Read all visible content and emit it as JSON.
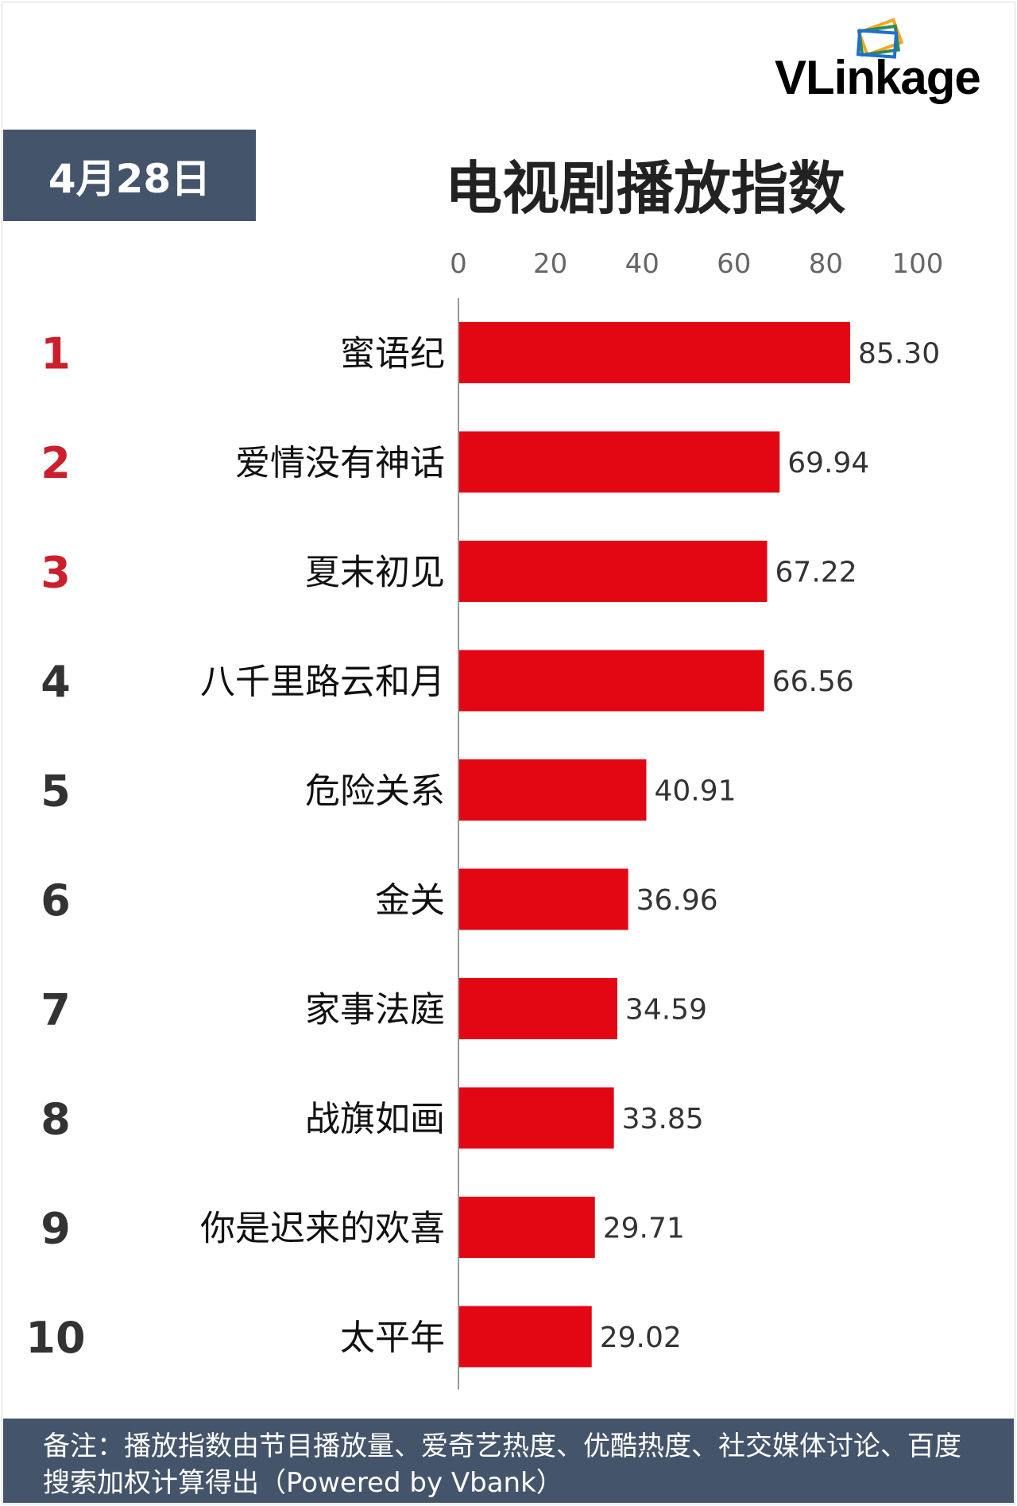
{
  "logo": {
    "text": "VLinkage"
  },
  "date_badge": "4月28日",
  "footer_note": "备注：播放指数由节目播放量、爱奇艺热度、优酷热度、社交媒体讨论、百度搜索加权计算得出（Powered by Vbank）",
  "colors": {
    "bar": "#e30613",
    "badge_bg": "#44546a",
    "rank_top": "#cc1e2c",
    "rank_other": "#333333"
  },
  "chart_data": {
    "type": "bar",
    "orientation": "horizontal",
    "title": "电视剧播放指数",
    "xlim": [
      0,
      100
    ],
    "ticks": [
      "0",
      "20",
      "40",
      "60",
      "80",
      "100"
    ],
    "tick_values": [
      0,
      20,
      40,
      60,
      80,
      100
    ],
    "grid": false,
    "ranks": [
      "1",
      "2",
      "3",
      "4",
      "5",
      "6",
      "7",
      "8",
      "9",
      "10"
    ],
    "categories": [
      "蜜语纪",
      "爱情没有神话",
      "夏末初见",
      "八千里路云和月",
      "危险关系",
      "金关",
      "家事法庭",
      "战旗如画",
      "你是迟来的欢喜",
      "太平年"
    ],
    "values": [
      85.3,
      69.94,
      67.22,
      66.56,
      40.91,
      36.96,
      34.59,
      33.85,
      29.71,
      29.02
    ],
    "value_labels": [
      "85.30",
      "69.94",
      "67.22",
      "66.56",
      "40.91",
      "36.96",
      "34.59",
      "33.85",
      "29.71",
      "29.02"
    ]
  }
}
